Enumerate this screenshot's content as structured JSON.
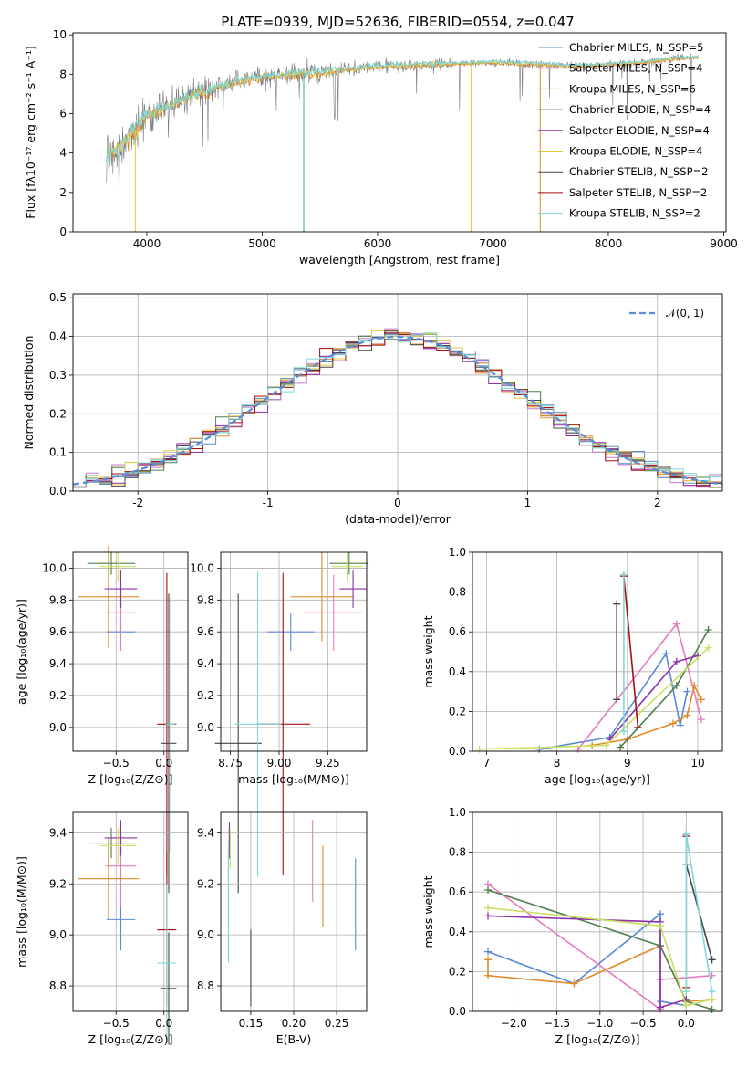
{
  "chart_data": [
    {
      "id": "spectrum",
      "type": "line",
      "title": "PLATE=0939, MJD=52636, FIBERID=0554, z=0.047",
      "xlabel": "wavelength [Angstrom, rest frame]",
      "ylabel": "Flux [fλ10⁻¹⁷ erg cm⁻² s⁻¹ A⁻¹]",
      "xlim": [
        3360,
        9020
      ],
      "ylim": [
        0,
        10.1
      ],
      "xticks": [
        4000,
        5000,
        6000,
        7000,
        8000,
        9000
      ],
      "yticks": [
        0,
        2,
        4,
        6,
        8,
        10
      ],
      "grid": false,
      "legend_position": "top-right",
      "legend": [
        {
          "label": "Chabrier MILES, N_SSP=5",
          "color": "#5f8fbf"
        },
        {
          "label": "Salpeter MILES, N_SSP=4",
          "color": "#c77ac9"
        },
        {
          "label": "Kroupa MILES, N_SSP=6",
          "color": "#e08a2a"
        },
        {
          "label": "Chabrier ELODIE, N_SSP=4",
          "color": "#4f7f4f"
        },
        {
          "label": "Salpeter ELODIE, N_SSP=4",
          "color": "#8e2fa8"
        },
        {
          "label": "Kroupa ELODIE, N_SSP=4",
          "color": "#e0c840"
        },
        {
          "label": "Chabrier STELIB, N_SSP=2",
          "color": "#444444"
        },
        {
          "label": "Salpeter STELIB, N_SSP=2",
          "color": "#a01010"
        },
        {
          "label": "Kroupa STELIB, N_SSP=2",
          "color": "#7fd8d8"
        }
      ],
      "continuum": {
        "x": [
          3650,
          3800,
          4000,
          4300,
          4600,
          5000,
          5500,
          6000,
          6500,
          7000,
          7400,
          7700,
          8000,
          8300,
          8600,
          8800
        ],
        "y": [
          3.8,
          4.5,
          5.9,
          6.7,
          7.3,
          7.9,
          8.1,
          8.4,
          8.5,
          8.6,
          8.5,
          8.4,
          8.5,
          8.6,
          8.8,
          8.9
        ]
      },
      "dropouts": [
        {
          "x": 3900,
          "color": "#e0c840"
        },
        {
          "x": 5360,
          "color": "#45a0a0"
        },
        {
          "x": 6810,
          "color": "#e0c840"
        },
        {
          "x": 7410,
          "color": "#e08a2a"
        }
      ]
    },
    {
      "id": "residuals",
      "type": "histogram",
      "xlabel": "(data-model)/error",
      "ylabel": "Normed distribution",
      "xlim": [
        -2.5,
        2.5
      ],
      "ylim": [
        0,
        0.51
      ],
      "xticks": [
        -2,
        -1,
        0,
        1,
        2
      ],
      "yticks": [
        0.0,
        0.1,
        0.2,
        0.3,
        0.4,
        0.5
      ],
      "grid": true,
      "legend_position": "top-right",
      "legend": [
        {
          "label": "𝒩(0, 1)",
          "color": "#5b8ad6"
        }
      ],
      "bin_width": 0.1,
      "series_colors": [
        "#5f8fbf",
        "#c77ac9",
        "#e08a2a",
        "#4f7f4f",
        "#8e2fa8",
        "#e0c840",
        "#444444",
        "#a01010",
        "#7fd8d8"
      ]
    },
    {
      "id": "age-vs-Z",
      "type": "scatter",
      "xlabel": "Z [log₁₀(Z/Z⊙)]",
      "ylabel": "age  [log₁₀(age/yr)]",
      "xlim": [
        -0.95,
        0.25
      ],
      "ylim": [
        8.85,
        10.1
      ],
      "xticks": [
        -0.5,
        0.0
      ],
      "xticklabels": [
        "−0.5",
        "0.0"
      ],
      "yticks": [
        9.0,
        9.2,
        9.4,
        9.6,
        9.8,
        10.0
      ],
      "grid": true,
      "points": [
        {
          "x": -0.45,
          "y": 9.6,
          "xerr": 0.15,
          "yerr": 0.1,
          "color": "#5b8ad6"
        },
        {
          "x": -0.45,
          "y": 9.72,
          "xerr": 0.16,
          "yerr": 0.24,
          "color": "#e87ac0"
        },
        {
          "x": -0.58,
          "y": 9.82,
          "xerr": 0.32,
          "yerr": 0.32,
          "color": "#e08a2a"
        },
        {
          "x": -0.55,
          "y": 10.03,
          "xerr": 0.25,
          "yerr": 0.07,
          "color": "#4f7f4f"
        },
        {
          "x": -0.45,
          "y": 9.87,
          "xerr": 0.17,
          "yerr": 0.12,
          "color": "#8e2fa8"
        },
        {
          "x": -0.48,
          "y": 10.01,
          "xerr": 0.19,
          "yerr": 0.09,
          "color": "#c8e060"
        },
        {
          "x": 0.05,
          "y": 8.9,
          "xerr": 0.08,
          "yerr": 0.94,
          "color": "#444444"
        },
        {
          "x": 0.03,
          "y": 9.02,
          "xerr": 0.1,
          "yerr": 0.95,
          "color": "#a01010"
        },
        {
          "x": 0.07,
          "y": 9.02,
          "xerr": 0.05,
          "yerr": 0.8,
          "color": "#7fd8d8"
        }
      ]
    },
    {
      "id": "age-vs-mass",
      "type": "scatter",
      "xlabel": "mass [log₁₀(M/M⊙)]",
      "ylabel": "",
      "xlim": [
        8.7,
        9.45
      ],
      "ylim": [
        8.85,
        10.1
      ],
      "xticks": [
        8.75,
        9.0,
        9.25
      ],
      "xticklabels": [
        "8.75",
        "9.00",
        "9.25"
      ],
      "yticks": [
        9.0,
        9.2,
        9.4,
        9.6,
        9.8,
        10.0
      ],
      "grid": true,
      "points": [
        {
          "x": 9.06,
          "y": 9.6,
          "xerr": 0.12,
          "yerr": 0.12,
          "color": "#5b8ad6"
        },
        {
          "x": 9.28,
          "y": 9.72,
          "xerr": 0.15,
          "yerr": 0.24,
          "color": "#e87ac0"
        },
        {
          "x": 9.22,
          "y": 9.82,
          "xerr": 0.16,
          "yerr": 0.28,
          "color": "#e08a2a"
        },
        {
          "x": 9.36,
          "y": 10.03,
          "xerr": 0.1,
          "yerr": 0.07,
          "color": "#4f7f4f"
        },
        {
          "x": 9.38,
          "y": 9.87,
          "xerr": 0.07,
          "yerr": 0.12,
          "color": "#8e2fa8"
        },
        {
          "x": 9.35,
          "y": 10.01,
          "xerr": 0.08,
          "yerr": 0.09,
          "color": "#c8e060"
        },
        {
          "x": 8.79,
          "y": 8.9,
          "xerr": 0.12,
          "yerr": 0.94,
          "color": "#444444"
        },
        {
          "x": 9.02,
          "y": 9.02,
          "xerr": 0.14,
          "yerr": 0.95,
          "color": "#a01010"
        },
        {
          "x": 8.89,
          "y": 9.02,
          "xerr": 0.12,
          "yerr": 0.96,
          "color": "#7fd8d8"
        }
      ]
    },
    {
      "id": "weight-vs-age",
      "type": "line",
      "xlabel": "age  [log₁₀(age/yr)]",
      "ylabel": "mass weight",
      "xlim": [
        6.8,
        10.35
      ],
      "ylim": [
        0.0,
        1.0
      ],
      "xticks": [
        7,
        8,
        9,
        10
      ],
      "yticks": [
        0.0,
        0.2,
        0.4,
        0.6,
        0.8,
        1.0
      ],
      "grid": true,
      "series": [
        {
          "color": "#5b8ad6",
          "x": [
            7.75,
            8.75,
            9.55,
            9.75,
            9.85
          ],
          "y": [
            0.01,
            0.07,
            0.49,
            0.13,
            0.3
          ]
        },
        {
          "color": "#e87ac0",
          "x": [
            8.3,
            9.7,
            10.05
          ],
          "y": [
            0.01,
            0.64,
            0.16
          ]
        },
        {
          "color": "#e08a2a",
          "x": [
            8.5,
            9.0,
            9.65,
            9.85,
            9.95,
            10.05
          ],
          "y": [
            0.03,
            0.06,
            0.14,
            0.18,
            0.33,
            0.26
          ]
        },
        {
          "color": "#4f7f4f",
          "x": [
            8.9,
            9.7,
            10.15
          ],
          "y": [
            0.02,
            0.33,
            0.61
          ]
        },
        {
          "color": "#8e2fa8",
          "x": [
            8.75,
            9.7,
            10.0
          ],
          "y": [
            0.06,
            0.45,
            0.48
          ]
        },
        {
          "color": "#c8e060",
          "x": [
            6.9,
            8.7,
            10.15
          ],
          "y": [
            0.01,
            0.03,
            0.52
          ]
        },
        {
          "color": "#444444",
          "x": [
            8.85,
            8.85
          ],
          "y": [
            0.26,
            0.74
          ]
        },
        {
          "color": "#a01010",
          "x": [
            8.95,
            9.15
          ],
          "y": [
            0.88,
            0.12
          ]
        },
        {
          "color": "#7fd8d8",
          "x": [
            8.95,
            8.95
          ],
          "y": [
            0.1,
            0.89
          ]
        }
      ]
    },
    {
      "id": "mass-vs-Z",
      "type": "scatter",
      "xlabel": "Z [log₁₀(Z/Z⊙)]",
      "ylabel": "mass [log₁₀(M/M⊙)]",
      "xlim": [
        -0.95,
        0.25
      ],
      "ylim": [
        8.7,
        9.48
      ],
      "xticks": [
        -0.5,
        0.0
      ],
      "xticklabels": [
        "−0.5",
        "0.0"
      ],
      "yticks": [
        8.8,
        9.0,
        9.2,
        9.4
      ],
      "grid": true,
      "points": [
        {
          "x": -0.45,
          "y": 9.06,
          "xerr": 0.15,
          "yerr": 0.12,
          "color": "#5b8ad6"
        },
        {
          "x": -0.45,
          "y": 9.27,
          "xerr": 0.16,
          "yerr": 0.16,
          "color": "#e87ac0"
        },
        {
          "x": -0.58,
          "y": 9.22,
          "xerr": 0.32,
          "yerr": 0.16,
          "color": "#e08a2a"
        },
        {
          "x": -0.55,
          "y": 9.36,
          "xerr": 0.25,
          "yerr": 0.06,
          "color": "#4f7f4f"
        },
        {
          "x": -0.45,
          "y": 9.38,
          "xerr": 0.17,
          "yerr": 0.07,
          "color": "#8e2fa8"
        },
        {
          "x": -0.48,
          "y": 9.35,
          "xerr": 0.19,
          "yerr": 0.07,
          "color": "#c8e060"
        },
        {
          "x": 0.05,
          "y": 8.79,
          "xerr": 0.08,
          "yerr": 0.22,
          "color": "#444444"
        },
        {
          "x": 0.03,
          "y": 9.02,
          "xerr": 0.1,
          "yerr": 0.3,
          "color": "#a01010"
        },
        {
          "x": 0.03,
          "y": 8.89,
          "xerr": 0.1,
          "yerr": 0.31,
          "color": "#7fd8d8"
        }
      ]
    },
    {
      "id": "mass-vs-EBV",
      "type": "scatter",
      "xlabel": "E(B-V)",
      "ylabel": "",
      "xlim": [
        0.115,
        0.285
      ],
      "ylim": [
        8.7,
        9.48
      ],
      "xticks": [
        0.15,
        0.2,
        0.25
      ],
      "xticklabels": [
        "0.15",
        "0.20",
        "0.25"
      ],
      "yticks": [
        8.8,
        9.0,
        9.2,
        9.4
      ],
      "grid": true,
      "points": [
        {
          "x": 0.272,
          "y": 9.12,
          "yerr": 0.18,
          "color": "#5b8ad6"
        },
        {
          "x": 0.222,
          "y": 9.29,
          "yerr": 0.16,
          "color": "#e87ac0"
        },
        {
          "x": 0.234,
          "y": 9.19,
          "yerr": 0.16,
          "color": "#e08a2a"
        },
        {
          "x": 0.125,
          "y": 9.36,
          "yerr": 0.06,
          "color": "#4f7f4f"
        },
        {
          "x": 0.125,
          "y": 9.37,
          "yerr": 0.07,
          "color": "#8e2fa8"
        },
        {
          "x": 0.126,
          "y": 9.34,
          "yerr": 0.08,
          "color": "#c8e060"
        },
        {
          "x": 0.15,
          "y": 8.87,
          "yerr": 0.15,
          "color": "#444444"
        },
        {
          "x": 0.124,
          "y": 9.27,
          "yerr": 0.06,
          "color": "#a01010"
        },
        {
          "x": 0.124,
          "y": 9.13,
          "yerr": 0.24,
          "color": "#7fd8d8"
        }
      ]
    },
    {
      "id": "weight-vs-Z",
      "type": "line",
      "xlabel": "Z [log₁₀(Z/Z⊙)]",
      "ylabel": "mass weight",
      "xlim": [
        -2.48,
        0.42
      ],
      "ylim": [
        0.0,
        1.0
      ],
      "xticks": [
        -2.0,
        -1.5,
        -1.0,
        -0.5,
        0.0
      ],
      "xticklabels": [
        "−2.0",
        "−1.5",
        "−1.0",
        "−0.5",
        "0.0"
      ],
      "yticks": [
        0.0,
        0.2,
        0.4,
        0.6,
        0.8,
        1.0
      ],
      "grid": true,
      "series": [
        {
          "color": "#5b8ad6",
          "x": [
            -2.3,
            -1.3,
            -0.3,
            -0.3,
            0.0
          ],
          "y": [
            0.3,
            0.14,
            0.49,
            0.05,
            0.03
          ]
        },
        {
          "color": "#e87ac0",
          "x": [
            -2.3,
            -0.3,
            -0.3,
            0.3
          ],
          "y": [
            0.64,
            0.01,
            0.16,
            0.18
          ]
        },
        {
          "color": "#e08a2a",
          "x": [
            -2.3,
            -2.3,
            -1.3,
            -0.3,
            0.0,
            0.3
          ],
          "y": [
            0.26,
            0.18,
            0.14,
            0.33,
            0.05,
            0.06
          ]
        },
        {
          "color": "#4f7f4f",
          "x": [
            -2.3,
            -0.3,
            0.0,
            0.3
          ],
          "y": [
            0.61,
            0.33,
            0.05,
            0.01
          ]
        },
        {
          "color": "#8e2fa8",
          "x": [
            -2.3,
            -0.3,
            -0.3,
            0.0
          ],
          "y": [
            0.48,
            0.45,
            0.02,
            0.06
          ]
        },
        {
          "color": "#c8e060",
          "x": [
            -2.3,
            -0.3,
            0.0,
            0.3
          ],
          "y": [
            0.52,
            0.43,
            0.03,
            0.06
          ]
        },
        {
          "color": "#444444",
          "x": [
            0.0,
            0.0,
            0.3
          ],
          "y": [
            0.89,
            0.74,
            0.26
          ]
        },
        {
          "color": "#a01010",
          "x": [
            0.0,
            0.0
          ],
          "y": [
            0.88,
            0.12
          ]
        },
        {
          "color": "#7fd8d8",
          "x": [
            0.0,
            0.0,
            0.3
          ],
          "y": [
            0.1,
            0.89,
            0.1
          ]
        }
      ]
    }
  ]
}
